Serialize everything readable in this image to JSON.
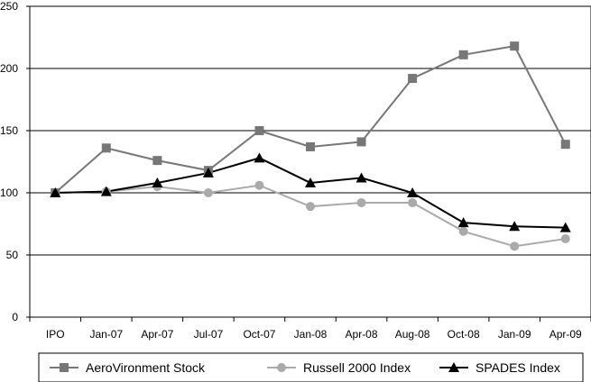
{
  "chart_data": {
    "type": "line",
    "categories": [
      "IPO",
      "Jan-07",
      "Apr-07",
      "Jul-07",
      "Oct-07",
      "Jan-08",
      "Apr-08",
      "Aug-08",
      "Oct-08",
      "Jan-09",
      "Apr-09"
    ],
    "ylim": [
      0,
      250
    ],
    "yticks": [
      0,
      50,
      100,
      150,
      200,
      250
    ],
    "grid": "horizontal",
    "legend_position": "bottom",
    "series": [
      {
        "name": "AeroVironment Stock",
        "marker": "square",
        "color": "#777777",
        "values": [
          100,
          136,
          126,
          118,
          150,
          137,
          141,
          192,
          211,
          218,
          139
        ]
      },
      {
        "name": "Russell 2000 Index",
        "marker": "circle",
        "color": "#aaaaaa",
        "values": [
          100,
          101,
          105,
          100,
          106,
          89,
          92,
          92,
          69,
          57,
          63
        ]
      },
      {
        "name": "SPADES Index",
        "marker": "triangle",
        "color": "#000000",
        "values": [
          100,
          101,
          108,
          116,
          128,
          108,
          112,
          100,
          76,
          73,
          72
        ]
      }
    ]
  }
}
